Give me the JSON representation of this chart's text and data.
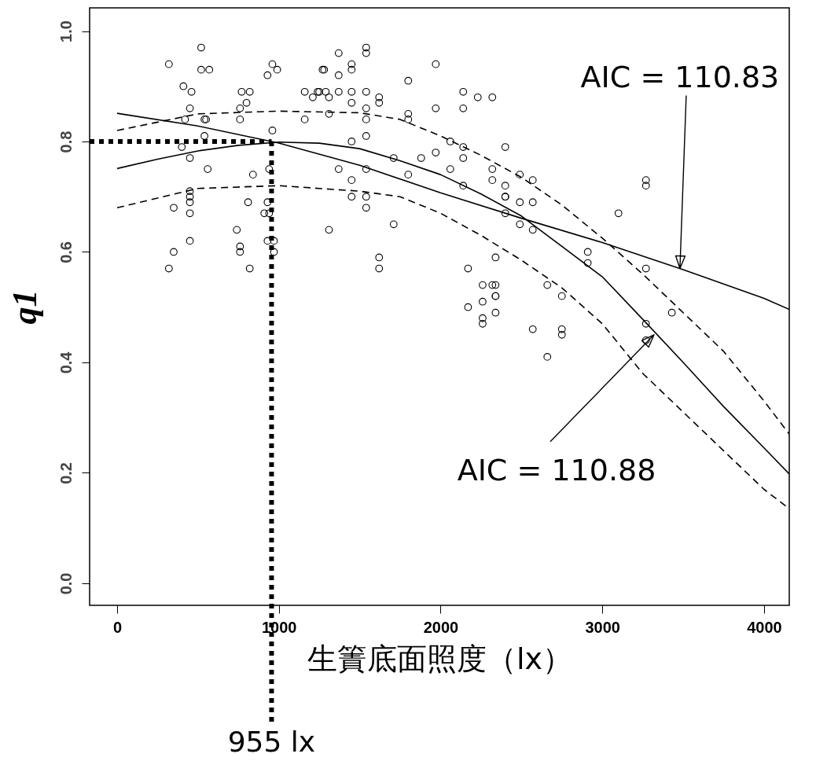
{
  "chart_data": {
    "type": "scatter",
    "xlabel": "生簀底面照度（lx）",
    "ylabel": "q1",
    "xlim": [
      -170,
      4156
    ],
    "ylim": [
      -0.04,
      1.042
    ],
    "xticks": [
      0,
      1000,
      2000,
      3000,
      4000
    ],
    "yticks": [
      {
        "value": 0,
        "label": "0.0"
      },
      {
        "value": 0.2,
        "label": "0.2"
      },
      {
        "value": 0.4,
        "label": "0.4"
      },
      {
        "value": 0.6,
        "label": "0.6"
      },
      {
        "value": 0.8,
        "label": "0.8"
      },
      {
        "value": 1,
        "label": "1.0"
      }
    ],
    "grid": false,
    "series": [
      {
        "color": "#000000",
        "marker": "circle",
        "x": [
          320,
          520,
          520,
          570,
          410,
          460,
          450,
          420,
          540,
          550,
          540,
          400,
          450,
          560,
          450,
          450,
          450,
          350,
          450,
          450,
          350,
          320,
          960,
          990,
          930,
          1270,
          1280,
          1370,
          1450,
          1450,
          1540,
          1540,
          1370,
          770,
          820,
          800,
          1160,
          1240,
          1290,
          1370,
          1450,
          1210,
          1250,
          1310,
          1450,
          1540,
          1620,
          1620,
          760,
          760,
          1160,
          1310,
          1540,
          1540,
          960,
          1450,
          1540,
          940,
          840,
          1370,
          1450,
          1540,
          810,
          930,
          910,
          940,
          1450,
          1540,
          1540,
          740,
          1310,
          930,
          970,
          760,
          760,
          970,
          1620,
          820,
          1620,
          1970,
          1800,
          2140,
          2230,
          2320,
          1970,
          2140,
          1800,
          1800,
          1710,
          1880,
          1970,
          2060,
          2140,
          2140,
          2400,
          2320,
          2320,
          2400,
          2490,
          2060,
          1800,
          2140,
          2400,
          2400,
          2400,
          2490,
          2490,
          1710,
          2570,
          2570,
          2570,
          3270,
          3270,
          3100,
          2340,
          2170,
          2910,
          2910,
          3270,
          2260,
          2320,
          2340,
          2340,
          2340,
          2660,
          2750,
          2170,
          2260,
          2260,
          2260,
          2340,
          2570,
          2750,
          2750,
          2660,
          3270,
          3270,
          3430
        ],
        "values": [
          0.94,
          0.97,
          0.93,
          0.93,
          0.9,
          0.89,
          0.86,
          0.84,
          0.84,
          0.84,
          0.81,
          0.79,
          0.77,
          0.75,
          0.71,
          0.7,
          0.69,
          0.68,
          0.67,
          0.62,
          0.6,
          0.57,
          0.94,
          0.93,
          0.92,
          0.93,
          0.93,
          0.96,
          0.94,
          0.93,
          0.97,
          0.96,
          0.92,
          0.89,
          0.89,
          0.87,
          0.89,
          0.89,
          0.89,
          0.89,
          0.89,
          0.88,
          0.89,
          0.88,
          0.87,
          0.89,
          0.88,
          0.87,
          0.86,
          0.84,
          0.84,
          0.85,
          0.86,
          0.84,
          0.82,
          0.8,
          0.81,
          0.75,
          0.74,
          0.75,
          0.73,
          0.75,
          0.69,
          0.69,
          0.67,
          0.67,
          0.7,
          0.7,
          0.68,
          0.64,
          0.64,
          0.62,
          0.62,
          0.61,
          0.6,
          0.6,
          0.59,
          0.57,
          0.57,
          0.94,
          0.91,
          0.89,
          0.88,
          0.88,
          0.86,
          0.86,
          0.85,
          0.84,
          0.77,
          0.77,
          0.78,
          0.8,
          0.79,
          0.77,
          0.79,
          0.75,
          0.73,
          0.72,
          0.74,
          0.75,
          0.74,
          0.72,
          0.7,
          0.7,
          0.67,
          0.69,
          0.65,
          0.65,
          0.73,
          0.69,
          0.64,
          0.73,
          0.72,
          0.67,
          0.59,
          0.57,
          0.6,
          0.58,
          0.57,
          0.54,
          0.54,
          0.54,
          0.52,
          0.52,
          0.54,
          0.52,
          0.5,
          0.51,
          0.48,
          0.47,
          0.49,
          0.46,
          0.46,
          0.45,
          0.41,
          0.47,
          0.44,
          0.49
        ]
      },
      {
        "type": "line",
        "color": "#000000",
        "line_style": "solid",
        "x": [
          0,
          500,
          1000,
          1500,
          2000,
          2500,
          3000,
          3500,
          4000,
          4156
        ],
        "values": [
          0.851,
          0.828,
          0.797,
          0.757,
          0.707,
          0.661,
          0.617,
          0.568,
          0.516,
          0.496
        ]
      },
      {
        "type": "line",
        "color": "#000000",
        "line_style": "solid",
        "x": [
          0,
          250,
          500,
          750,
          1000,
          1250,
          1500,
          1750,
          2000,
          2250,
          2500,
          2750,
          3000,
          3250,
          3500,
          3750,
          4000,
          4156
        ],
        "values": [
          0.751,
          0.768,
          0.783,
          0.793,
          0.799,
          0.797,
          0.787,
          0.765,
          0.74,
          0.705,
          0.665,
          0.61,
          0.555,
          0.478,
          0.4,
          0.32,
          0.245,
          0.198
        ]
      },
      {
        "type": "line",
        "color": "#000000",
        "line_style": "dashed",
        "x": [
          0,
          500,
          1000,
          1500,
          1750,
          2000,
          2250,
          2500,
          2750,
          3000,
          3250,
          3500,
          3750,
          4000,
          4156
        ],
        "values": [
          0.82,
          0.85,
          0.855,
          0.852,
          0.84,
          0.81,
          0.775,
          0.735,
          0.685,
          0.625,
          0.56,
          0.49,
          0.42,
          0.33,
          0.27
        ]
      },
      {
        "type": "line",
        "color": "#000000",
        "line_style": "dashed",
        "x": [
          0,
          500,
          1000,
          1500,
          1750,
          2000,
          2250,
          2500,
          2750,
          3000,
          3250,
          3500,
          3750,
          4000,
          4156
        ],
        "values": [
          0.68,
          0.715,
          0.72,
          0.71,
          0.7,
          0.67,
          0.63,
          0.585,
          0.535,
          0.47,
          0.38,
          0.31,
          0.24,
          0.17,
          0.135
        ]
      }
    ],
    "ref_lines": [
      {
        "axis": "y",
        "value": 0.8,
        "color": "#000000",
        "line_style": "dotted"
      },
      {
        "axis": "x",
        "value": 955,
        "label": "955 lx",
        "color": "#000000",
        "line_style": "dotted"
      }
    ],
    "annotations": [
      {
        "text": "AIC = 110.83",
        "x": 3480,
        "y": 0.57
      },
      {
        "text": "AIC = 110.88",
        "x": 3320,
        "y": 0.45
      }
    ]
  }
}
